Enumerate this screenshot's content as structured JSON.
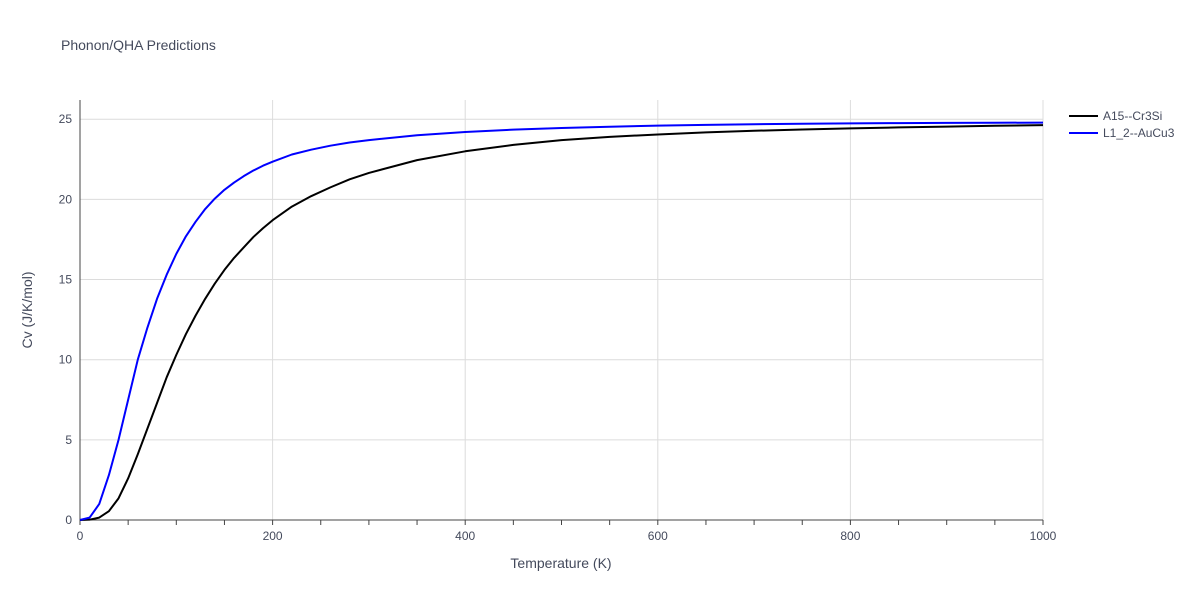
{
  "chart_data": {
    "type": "line",
    "title": "Phonon/QHA Predictions",
    "xlabel": "Temperature (K)",
    "ylabel": "Cv (J/K/mol)",
    "xlim": [
      0,
      1000
    ],
    "ylim": [
      0,
      26.2
    ],
    "xticks": [
      0,
      200,
      400,
      600,
      800,
      1000
    ],
    "yticks": [
      0,
      5,
      10,
      15,
      20,
      25
    ],
    "grid": true,
    "legend_position": "top-right, outside plot",
    "series": [
      {
        "name": "A15--Cr3Si",
        "color": "#000000",
        "x": [
          0,
          10,
          20,
          30,
          40,
          50,
          60,
          70,
          80,
          90,
          100,
          110,
          120,
          130,
          140,
          150,
          160,
          170,
          180,
          190,
          200,
          220,
          240,
          260,
          280,
          300,
          350,
          400,
          450,
          500,
          550,
          600,
          650,
          700,
          750,
          800,
          850,
          900,
          950,
          1000
        ],
        "y": [
          0,
          0.02,
          0.15,
          0.55,
          1.35,
          2.6,
          4.1,
          5.7,
          7.3,
          8.9,
          10.3,
          11.6,
          12.75,
          13.8,
          14.75,
          15.6,
          16.35,
          17.0,
          17.65,
          18.2,
          18.7,
          19.55,
          20.2,
          20.75,
          21.25,
          21.65,
          22.45,
          23.0,
          23.4,
          23.7,
          23.9,
          24.05,
          24.18,
          24.28,
          24.36,
          24.43,
          24.49,
          24.54,
          24.59,
          24.63
        ]
      },
      {
        "name": "L1_2--AuCu3",
        "color": "#0000ff",
        "x": [
          0,
          10,
          20,
          30,
          40,
          50,
          60,
          70,
          80,
          90,
          100,
          110,
          120,
          130,
          140,
          150,
          160,
          170,
          180,
          190,
          200,
          220,
          240,
          260,
          280,
          300,
          350,
          400,
          450,
          500,
          550,
          600,
          650,
          700,
          750,
          800,
          850,
          900,
          950,
          1000
        ],
        "y": [
          0,
          0.15,
          1.0,
          2.8,
          5.0,
          7.5,
          10.0,
          12.0,
          13.8,
          15.3,
          16.6,
          17.7,
          18.6,
          19.4,
          20.05,
          20.6,
          21.05,
          21.45,
          21.8,
          22.1,
          22.35,
          22.8,
          23.1,
          23.35,
          23.55,
          23.7,
          24.0,
          24.2,
          24.35,
          24.45,
          24.53,
          24.6,
          24.65,
          24.69,
          24.72,
          24.74,
          24.76,
          24.77,
          24.78,
          24.79
        ]
      }
    ]
  }
}
